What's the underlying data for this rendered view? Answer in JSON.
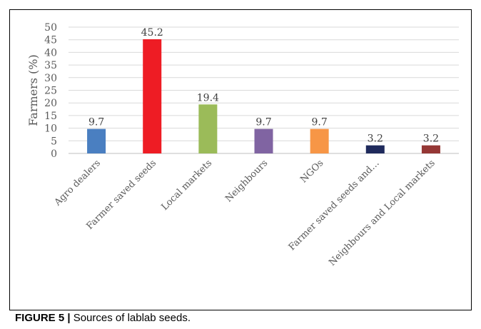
{
  "chart_data": {
    "type": "bar",
    "ylabel": "Farmers (%)",
    "xlabel": "",
    "ylim": [
      0,
      50
    ],
    "yticks": [
      0,
      5,
      10,
      15,
      20,
      25,
      30,
      35,
      40,
      45,
      50
    ],
    "grid": true,
    "categories": [
      "Agro dealers",
      "Farmer saved seeds",
      "Local markets",
      "Neighbours",
      "NGOs",
      "Farmer saved seeds and…",
      "Neighbours and Local markets"
    ],
    "values": [
      9.7,
      45.2,
      19.4,
      9.7,
      9.7,
      3.2,
      3.2
    ],
    "value_labels": [
      "9.7",
      "45.2",
      "19.4",
      "9.7",
      "9.7",
      "3.2",
      "3.2"
    ],
    "colors": [
      "#4a7fc1",
      "#ee1c24",
      "#9bbb59",
      "#8064a2",
      "#f79646",
      "#1f2a5c",
      "#953735"
    ]
  },
  "caption": {
    "label": "FIGURE 5 |",
    "text": " Sources of lablab seeds."
  }
}
